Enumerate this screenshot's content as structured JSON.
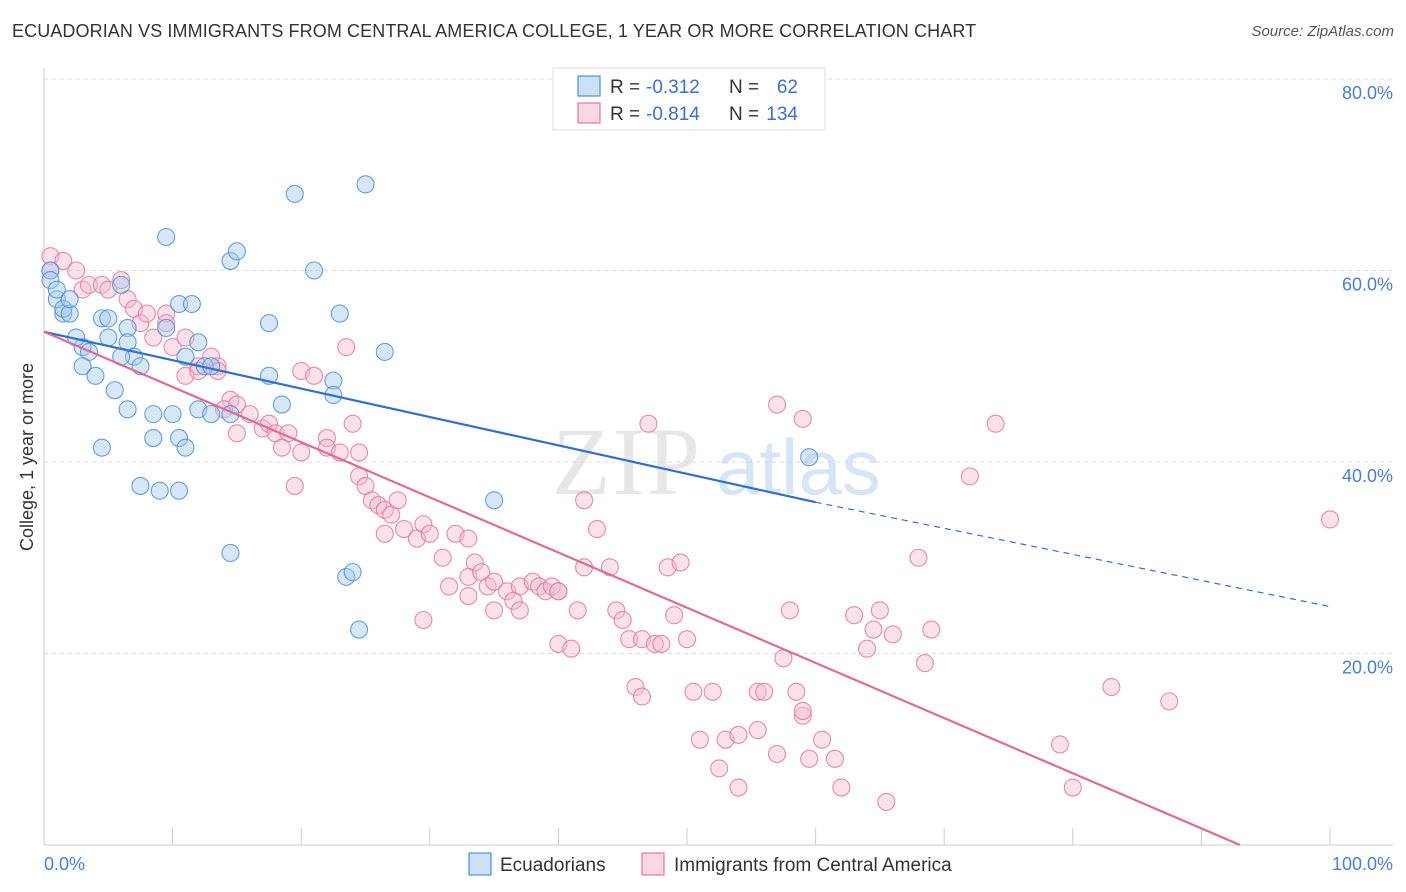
{
  "title": "ECUADORIAN VS IMMIGRANTS FROM CENTRAL AMERICA COLLEGE, 1 YEAR OR MORE CORRELATION CHART",
  "source": "Source: ZipAtlas.com",
  "watermark": {
    "zip": "ZIP",
    "atlas": "atlas"
  },
  "colors": {
    "blue": "#4a8fe0",
    "blue_fill": "#a9c9f0",
    "pink": "#e8769e",
    "pink_fill": "#f5bcd0",
    "blue_line": "#2f6fd0",
    "pink_line": "#e06a95",
    "grid": "#dddddd",
    "tick_text": "#4a7dd6"
  },
  "legend": {
    "rows": [
      {
        "r_label": "R =",
        "r_value": "-0.312",
        "n_label": "N =",
        "n_value": "62"
      },
      {
        "r_label": "R =",
        "r_value": "-0.814",
        "n_label": "N =",
        "n_value": "134"
      }
    ]
  },
  "bottom_legend": [
    "Ecuadorians",
    "Immigrants from Central America"
  ],
  "chart_data": {
    "type": "scatter",
    "ylabel": "College, 1 year or more",
    "xlabel": "",
    "xlim": [
      0,
      100
    ],
    "ylim": [
      0,
      80
    ],
    "x_tick_labels": [
      "0.0%",
      "100.0%"
    ],
    "y_tick_labels": [
      "20.0%",
      "40.0%",
      "60.0%",
      "80.0%"
    ],
    "y_ticks": [
      20,
      40,
      60,
      80
    ],
    "grid": true,
    "legend_position": "top-center",
    "series": [
      {
        "name": "Ecuadorians",
        "color": "#4a8fe0",
        "trend": {
          "x0": 0,
          "y0": 53.6,
          "x1": 60,
          "y1": 35.8,
          "dash_to_x": 100,
          "dash_to_y": 24.9
        },
        "points": [
          [
            0.5,
            60
          ],
          [
            0.5,
            59
          ],
          [
            1,
            57
          ],
          [
            1.5,
            55.5
          ],
          [
            1.5,
            56
          ],
          [
            2,
            55.5
          ],
          [
            3,
            52
          ],
          [
            2.5,
            53
          ],
          [
            3.5,
            51.5
          ],
          [
            3,
            50
          ],
          [
            4.5,
            55
          ],
          [
            5,
            55
          ],
          [
            4,
            49
          ],
          [
            5.5,
            47.5
          ],
          [
            6.5,
            54
          ],
          [
            6.5,
            52.5
          ],
          [
            7,
            51
          ],
          [
            6,
            51
          ],
          [
            5,
            53
          ],
          [
            6,
            58.5
          ],
          [
            7.5,
            50
          ],
          [
            9.5,
            54
          ],
          [
            10.5,
            56.5
          ],
          [
            11,
            51
          ],
          [
            12,
            52.5
          ],
          [
            12.5,
            50
          ],
          [
            9.5,
            63.5
          ],
          [
            10,
            45
          ],
          [
            12,
            45.5
          ],
          [
            13,
            45
          ],
          [
            8.5,
            45
          ],
          [
            8.5,
            42.5
          ],
          [
            6.5,
            45.5
          ],
          [
            10.5,
            42.5
          ],
          [
            11,
            41.5
          ],
          [
            10.5,
            37
          ],
          [
            7.5,
            37.5
          ],
          [
            9,
            37
          ],
          [
            4.5,
            41.5
          ],
          [
            14.5,
            61
          ],
          [
            15,
            62
          ],
          [
            17.5,
            54.5
          ],
          [
            17.5,
            49
          ],
          [
            18.5,
            46
          ],
          [
            19.5,
            68
          ],
          [
            21,
            60
          ],
          [
            23,
            55.5
          ],
          [
            22.5,
            48.5
          ],
          [
            22.5,
            47
          ],
          [
            25,
            69
          ],
          [
            26.5,
            51.5
          ],
          [
            14.5,
            30.5
          ],
          [
            23.5,
            28
          ],
          [
            24,
            28.5
          ],
          [
            24.5,
            22.5
          ],
          [
            35,
            36
          ],
          [
            59.5,
            40.5
          ],
          [
            14.5,
            45
          ],
          [
            13,
            50
          ],
          [
            11.5,
            56.5
          ],
          [
            1,
            58
          ],
          [
            2,
            57
          ]
        ]
      },
      {
        "name": "Immigrants from Central America",
        "color": "#e8769e",
        "trend": {
          "x0": 0,
          "y0": 53.6,
          "x1": 93,
          "y1": 0
        },
        "points": [
          [
            0.5,
            61.5
          ],
          [
            1.5,
            61
          ],
          [
            2.5,
            60
          ],
          [
            0.5,
            60
          ],
          [
            3,
            58
          ],
          [
            3.5,
            58.5
          ],
          [
            4.5,
            58.5
          ],
          [
            5,
            58
          ],
          [
            6,
            59
          ],
          [
            6.5,
            57
          ],
          [
            7,
            56
          ],
          [
            7.5,
            54.5
          ],
          [
            8,
            55.5
          ],
          [
            8.5,
            53
          ],
          [
            9.5,
            55.5
          ],
          [
            9.5,
            54.5
          ],
          [
            10,
            52
          ],
          [
            11,
            53
          ],
          [
            11,
            49
          ],
          [
            12,
            50
          ],
          [
            12,
            49.5
          ],
          [
            13,
            51
          ],
          [
            13.5,
            50
          ],
          [
            13.5,
            49.5
          ],
          [
            14.5,
            46.5
          ],
          [
            15,
            46
          ],
          [
            14,
            45.5
          ],
          [
            15,
            43
          ],
          [
            16,
            45
          ],
          [
            17,
            43.5
          ],
          [
            17.5,
            44
          ],
          [
            18,
            43
          ],
          [
            19,
            43
          ],
          [
            18.5,
            41.5
          ],
          [
            20,
            41
          ],
          [
            19.5,
            37.5
          ],
          [
            20,
            49.5
          ],
          [
            21,
            49
          ],
          [
            22,
            42.5
          ],
          [
            22,
            41.5
          ],
          [
            23,
            41
          ],
          [
            24,
            44
          ],
          [
            24.5,
            41
          ],
          [
            24.5,
            38.5
          ],
          [
            25,
            37.5
          ],
          [
            25.5,
            36
          ],
          [
            26,
            35.5
          ],
          [
            26.5,
            35
          ],
          [
            27,
            34.5
          ],
          [
            27.5,
            36
          ],
          [
            26.5,
            32.5
          ],
          [
            28,
            33
          ],
          [
            29,
            32
          ],
          [
            29.5,
            33.5
          ],
          [
            30,
            32.5
          ],
          [
            31,
            30
          ],
          [
            32,
            32.5
          ],
          [
            33,
            32
          ],
          [
            33.5,
            29.5
          ],
          [
            33,
            28
          ],
          [
            34,
            28.5
          ],
          [
            34.5,
            27
          ],
          [
            35,
            27.5
          ],
          [
            36,
            26.5
          ],
          [
            37,
            27
          ],
          [
            38,
            27.5
          ],
          [
            38.5,
            27
          ],
          [
            39,
            26.5
          ],
          [
            39.5,
            27
          ],
          [
            40,
            26.5
          ],
          [
            29.5,
            23.5
          ],
          [
            31.5,
            27
          ],
          [
            33,
            26
          ],
          [
            35,
            24.5
          ],
          [
            36.5,
            25.5
          ],
          [
            37,
            24.5
          ],
          [
            40,
            26.5
          ],
          [
            42,
            36
          ],
          [
            43,
            33
          ],
          [
            44,
            29
          ],
          [
            44.5,
            24.5
          ],
          [
            45,
            23.5
          ],
          [
            45.5,
            21.5
          ],
          [
            46.5,
            21.5
          ],
          [
            47.5,
            21
          ],
          [
            48,
            21
          ],
          [
            48.5,
            29
          ],
          [
            49,
            24
          ],
          [
            40,
            21
          ],
          [
            41,
            20.5
          ],
          [
            41.5,
            24.5
          ],
          [
            42,
            29
          ],
          [
            47,
            44
          ],
          [
            49.5,
            29.5
          ],
          [
            50,
            21.5
          ],
          [
            46,
            16.5
          ],
          [
            46.5,
            15.5
          ],
          [
            50.5,
            16
          ],
          [
            51,
            11
          ],
          [
            52,
            16
          ],
          [
            53,
            11
          ],
          [
            52.5,
            8
          ],
          [
            54,
            6
          ],
          [
            55.5,
            16
          ],
          [
            54,
            11.5
          ],
          [
            55.5,
            12
          ],
          [
            56,
            16
          ],
          [
            57,
            9.5
          ],
          [
            57.5,
            19.5
          ],
          [
            58,
            24.5
          ],
          [
            58.5,
            16
          ],
          [
            59,
            13.5
          ],
          [
            59,
            14
          ],
          [
            59.5,
            9
          ],
          [
            60.5,
            11
          ],
          [
            61.5,
            9
          ],
          [
            62,
            6
          ],
          [
            63,
            24
          ],
          [
            64,
            20.5
          ],
          [
            64.5,
            22.5
          ],
          [
            65,
            24.5
          ],
          [
            65.5,
            4.5
          ],
          [
            66,
            22
          ],
          [
            68,
            30
          ],
          [
            68.5,
            19
          ],
          [
            69,
            22.5
          ],
          [
            72,
            38.5
          ],
          [
            74,
            44
          ],
          [
            79,
            10.5
          ],
          [
            80,
            6
          ],
          [
            83,
            16.5
          ],
          [
            87.5,
            15
          ],
          [
            100,
            34
          ],
          [
            57,
            46
          ],
          [
            59,
            44.5
          ],
          [
            23.5,
            52
          ]
        ]
      }
    ]
  }
}
